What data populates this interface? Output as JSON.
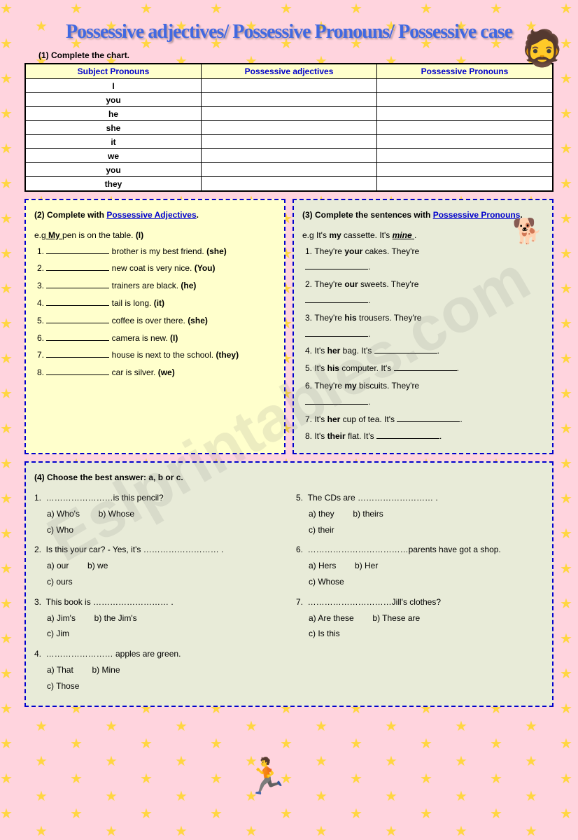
{
  "title": "Possessive adjectives/ Possessive Pronouns/ Possessive case",
  "watermark": "Eslprintables.com",
  "s1": {
    "h": "(1) Complete the chart.",
    "cols": [
      "Subject Pronouns",
      "Possessive adjectives",
      "Possessive Pronouns"
    ],
    "rows": [
      "I",
      "you",
      "he",
      "she",
      "it",
      "we",
      "you",
      "they"
    ]
  },
  "s2": {
    "h": "(2) Complete with ",
    "link": "Possessive Adjectives",
    "eg_pre": "e.g",
    "eg_ans": "My",
    "eg_post": "pen is on the table.",
    "eg_hint": "(I)",
    "items": [
      {
        "t": "brother is my best friend.",
        "h": "(she)"
      },
      {
        "t": "new coat is very nice.",
        "h": "(You)"
      },
      {
        "t": "trainers are black.",
        "h": "(he)"
      },
      {
        "t": "tail is long.",
        "h": "(it)"
      },
      {
        "t": "coffee is over there.",
        "h": "(she)"
      },
      {
        "t": "camera is new.",
        "h": "(I)"
      },
      {
        "t": "house is next to the school.",
        "h": "(they)"
      },
      {
        "t": "car is silver.",
        "h": "(we)"
      }
    ]
  },
  "s3": {
    "h": "(3) Complete the sentences with ",
    "link": "Possessive Pronouns",
    "eg": "e.g It's ",
    "eg_b": "my",
    "eg_m": " cassette. It's ",
    "eg_ans": "mine",
    "eg_end": ".",
    "items": [
      {
        "pre": "They're ",
        "b": "your",
        "post": " cakes. They're"
      },
      {
        "pre": "They're ",
        "b": "our",
        "post": " sweets. They're"
      },
      {
        "pre": "They're ",
        "b": "his",
        "post": " trousers. They're"
      },
      {
        "pre": "It's ",
        "b": "her",
        "post": " bag. It's"
      },
      {
        "pre": "It's ",
        "b": "his",
        "post": " computer. It's"
      },
      {
        "pre": "They're ",
        "b": "my",
        "post": " biscuits. They're"
      },
      {
        "pre": "It's ",
        "b": "her",
        "post": " cup of tea. It's"
      },
      {
        "pre": "It's ",
        "b": "their",
        "post": " flat. It's"
      }
    ]
  },
  "s4": {
    "h": "(4) Choose the best answer: a, b or c.",
    "left": [
      {
        "q": "……………………is this pencil?",
        "a": "a) Who's",
        "b": "b) Whose",
        "c": "c) Who"
      },
      {
        "q": "Is this your car?  - Yes, it's ……………………… .",
        "a": "a) our",
        "b": "b) we",
        "c": "c) ours"
      },
      {
        "q": "This book is ……………………… .",
        "a": "a) Jim's",
        "b": "b) the Jim's",
        "c": "c) Jim"
      },
      {
        "q": "…………………… apples are green.",
        "a": "a) That",
        "b": "b) Mine",
        "c": "c) Those"
      }
    ],
    "right": [
      {
        "q": "The CDs are ……………………… .",
        "a": "a) they",
        "b": "b) theirs",
        "c": "c) their"
      },
      {
        "q": "………………………………parents have got a shop.",
        "a": "a) Hers",
        "b": "b) Her",
        "c": "c) Whose"
      },
      {
        "q": "…………………………Jill's clothes?",
        "a": "a) Are these",
        "b": "b) These are",
        "c": "c) Is this"
      }
    ]
  }
}
